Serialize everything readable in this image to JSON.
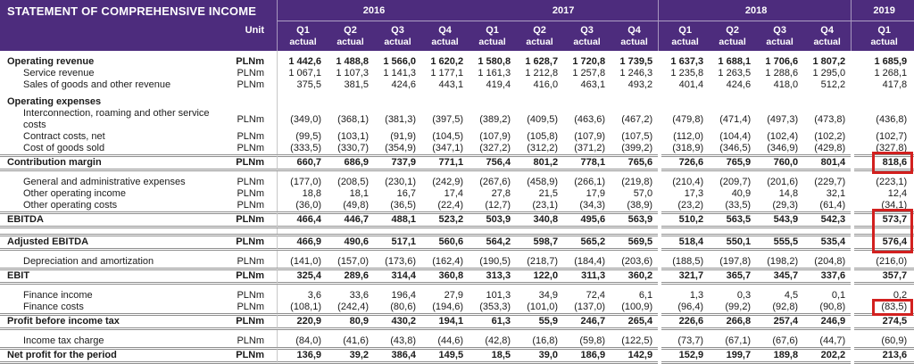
{
  "title": "STATEMENT OF COMPREHENSIVE INCOME",
  "unit_label": "Unit",
  "quarter_sub_label": "actual",
  "colors": {
    "header_bg": "#4d2c7d",
    "header_text": "#ffffff",
    "highlight_red": "#d2201f",
    "rule_gray": "#8f8f8f",
    "divider_gray": "#c8c8c8"
  },
  "year_groups": [
    {
      "year": "2016",
      "quarters": [
        "Q1",
        "Q2",
        "Q3",
        "Q4"
      ],
      "sep_before": true
    },
    {
      "year": "2017",
      "quarters": [
        "Q1",
        "Q2",
        "Q3",
        "Q4"
      ],
      "sep_before": false
    },
    {
      "year": "2018",
      "quarters": [
        "Q1",
        "Q2",
        "Q3",
        "Q4"
      ],
      "sep_before": true
    },
    {
      "year": "2019",
      "quarters": [
        "Q1"
      ],
      "sep_before": true
    }
  ],
  "rows": [
    {
      "style": "gap"
    },
    {
      "id": "operating-revenue",
      "style": "section",
      "label": "Operating revenue",
      "unit": "PLNm",
      "values": [
        "1 442,6",
        "1 488,8",
        "1 566,0",
        "1 620,2",
        "1 580,8",
        "1 628,7",
        "1 720,8",
        "1 739,5",
        "1 637,3",
        "1 688,1",
        "1 706,6",
        "1 807,2",
        "1 685,9"
      ]
    },
    {
      "id": "service-revenue",
      "style": "sub",
      "label": "Service revenue",
      "unit": "PLNm",
      "values": [
        "1 067,1",
        "1 107,3",
        "1 141,3",
        "1 177,1",
        "1 161,3",
        "1 212,8",
        "1 257,8",
        "1 246,3",
        "1 235,8",
        "1 263,5",
        "1 288,6",
        "1 295,0",
        "1 268,1"
      ]
    },
    {
      "id": "sales-of-goods",
      "style": "sub",
      "label": "Sales of goods and other revenue",
      "unit": "PLNm",
      "values": [
        "375,5",
        "381,5",
        "424,6",
        "443,1",
        "419,4",
        "416,0",
        "463,1",
        "493,2",
        "401,4",
        "424,6",
        "418,0",
        "512,2",
        "417,8"
      ]
    },
    {
      "style": "gap"
    },
    {
      "id": "operating-expenses",
      "style": "heading",
      "label": "Operating expenses",
      "unit": "",
      "values": null
    },
    {
      "id": "interconnection-costs",
      "style": "sub",
      "label": "Interconnection, roaming and other service costs",
      "unit": "PLNm",
      "values": [
        "(349,0)",
        "(368,1)",
        "(381,3)",
        "(397,5)",
        "(389,2)",
        "(409,5)",
        "(463,6)",
        "(467,2)",
        "(479,8)",
        "(471,4)",
        "(497,3)",
        "(473,8)",
        "(436,8)"
      ]
    },
    {
      "id": "contract-costs-net",
      "style": "sub",
      "label": "Contract costs, net",
      "unit": "PLNm",
      "values": [
        "(99,5)",
        "(103,1)",
        "(91,9)",
        "(104,5)",
        "(107,9)",
        "(105,8)",
        "(107,9)",
        "(107,5)",
        "(112,0)",
        "(104,4)",
        "(102,4)",
        "(102,2)",
        "(102,7)"
      ]
    },
    {
      "id": "cost-of-goods-sold",
      "style": "sub",
      "label": "Cost of goods sold",
      "unit": "PLNm",
      "values": [
        "(333,5)",
        "(330,7)",
        "(354,9)",
        "(347,1)",
        "(327,2)",
        "(312,2)",
        "(371,2)",
        "(399,2)",
        "(318,9)",
        "(346,5)",
        "(346,9)",
        "(429,8)",
        "(327,8)"
      ]
    },
    {
      "id": "contribution-margin",
      "style": "total",
      "label": "Contribution margin",
      "unit": "PLNm",
      "values": [
        "660,7",
        "686,9",
        "737,9",
        "771,1",
        "756,4",
        "801,2",
        "778,1",
        "765,6",
        "726,6",
        "765,9",
        "760,0",
        "801,4",
        "818,6"
      ]
    },
    {
      "style": "gap"
    },
    {
      "id": "general-admin-expenses",
      "style": "sub",
      "label": "General and administrative expenses",
      "unit": "PLNm",
      "values": [
        "(177,0)",
        "(208,5)",
        "(230,1)",
        "(242,9)",
        "(267,6)",
        "(458,9)",
        "(266,1)",
        "(219,8)",
        "(210,4)",
        "(209,7)",
        "(201,6)",
        "(229,7)",
        "(223,1)"
      ]
    },
    {
      "id": "other-operating-income",
      "style": "sub",
      "label": "Other operating income",
      "unit": "PLNm",
      "values": [
        "18,8",
        "18,1",
        "16,7",
        "17,4",
        "27,8",
        "21,5",
        "17,9",
        "57,0",
        "17,3",
        "40,9",
        "14,8",
        "32,1",
        "12,4"
      ]
    },
    {
      "id": "other-operating-costs",
      "style": "sub",
      "label": "Other operating costs",
      "unit": "PLNm",
      "values": [
        "(36,0)",
        "(49,8)",
        "(36,5)",
        "(22,4)",
        "(12,7)",
        "(23,1)",
        "(34,3)",
        "(38,9)",
        "(23,2)",
        "(33,5)",
        "(29,3)",
        "(61,4)",
        "(34,1)"
      ]
    },
    {
      "id": "ebitda",
      "style": "total",
      "label": "EBITDA",
      "unit": "PLNm",
      "values": [
        "466,4",
        "446,7",
        "488,1",
        "523,2",
        "503,9",
        "340,8",
        "495,6",
        "563,9",
        "510,2",
        "563,5",
        "543,9",
        "542,3",
        "573,7"
      ]
    },
    {
      "style": "gap"
    },
    {
      "id": "adjusted-ebitda",
      "style": "total",
      "label": "Adjusted EBITDA",
      "unit": "PLNm",
      "values": [
        "466,9",
        "490,6",
        "517,1",
        "560,6",
        "564,2",
        "598,7",
        "565,2",
        "569,5",
        "518,4",
        "550,1",
        "555,5",
        "535,4",
        "576,4"
      ]
    },
    {
      "style": "gap"
    },
    {
      "id": "depreciation-amortization",
      "style": "sub",
      "label": "Depreciation and amortization",
      "unit": "PLNm",
      "values": [
        "(141,0)",
        "(157,0)",
        "(173,6)",
        "(162,4)",
        "(190,5)",
        "(218,7)",
        "(184,4)",
        "(203,6)",
        "(188,5)",
        "(197,8)",
        "(198,2)",
        "(204,8)",
        "(216,0)"
      ]
    },
    {
      "id": "ebit",
      "style": "total",
      "label": "EBIT",
      "unit": "PLNm",
      "values": [
        "325,4",
        "289,6",
        "314,4",
        "360,8",
        "313,3",
        "122,0",
        "311,3",
        "360,2",
        "321,7",
        "365,7",
        "345,7",
        "337,6",
        "357,7"
      ]
    },
    {
      "style": "gap"
    },
    {
      "id": "finance-income",
      "style": "sub",
      "label": "Finance income",
      "unit": "PLNm",
      "values": [
        "3,6",
        "33,6",
        "196,4",
        "27,9",
        "101,3",
        "34,9",
        "72,4",
        "6,1",
        "1,3",
        "0,3",
        "4,5",
        "0,1",
        "0,2"
      ]
    },
    {
      "id": "finance-costs",
      "style": "sub",
      "label": "Finance costs",
      "unit": "PLNm",
      "values": [
        "(108,1)",
        "(242,4)",
        "(80,6)",
        "(194,6)",
        "(353,3)",
        "(101,0)",
        "(137,0)",
        "(100,9)",
        "(96,4)",
        "(99,2)",
        "(92,8)",
        "(90,8)",
        "(83,5)"
      ]
    },
    {
      "id": "profit-before-tax",
      "style": "total",
      "label": "Profit before income tax",
      "unit": "PLNm",
      "values": [
        "220,9",
        "80,9",
        "430,2",
        "194,1",
        "61,3",
        "55,9",
        "246,7",
        "265,4",
        "226,6",
        "266,8",
        "257,4",
        "246,9",
        "274,5"
      ]
    },
    {
      "style": "gap"
    },
    {
      "id": "income-tax-charge",
      "style": "sub",
      "label": "Income tax charge",
      "unit": "PLNm",
      "values": [
        "(84,0)",
        "(41,6)",
        "(43,8)",
        "(44,6)",
        "(42,8)",
        "(16,8)",
        "(59,8)",
        "(122,5)",
        "(73,7)",
        "(67,1)",
        "(67,6)",
        "(44,7)",
        "(60,9)"
      ]
    },
    {
      "id": "net-profit",
      "style": "total",
      "label": "Net profit for the period",
      "unit": "PLNm",
      "values": [
        "136,9",
        "39,2",
        "386,4",
        "149,5",
        "18,5",
        "39,0",
        "186,9",
        "142,9",
        "152,9",
        "199,7",
        "189,8",
        "202,2",
        "213,6"
      ]
    }
  ],
  "highlights": [
    {
      "id": "hl-contribution-margin-2019q1",
      "row_ids": [
        "contribution-margin"
      ],
      "col_index": 12
    },
    {
      "id": "hl-ebitda-2019q1",
      "row_ids": [
        "ebitda",
        "adjusted-ebitda"
      ],
      "col_index": 12
    },
    {
      "id": "hl-finance-costs-2019q1",
      "row_ids": [
        "finance-costs"
      ],
      "col_index": 12
    }
  ]
}
